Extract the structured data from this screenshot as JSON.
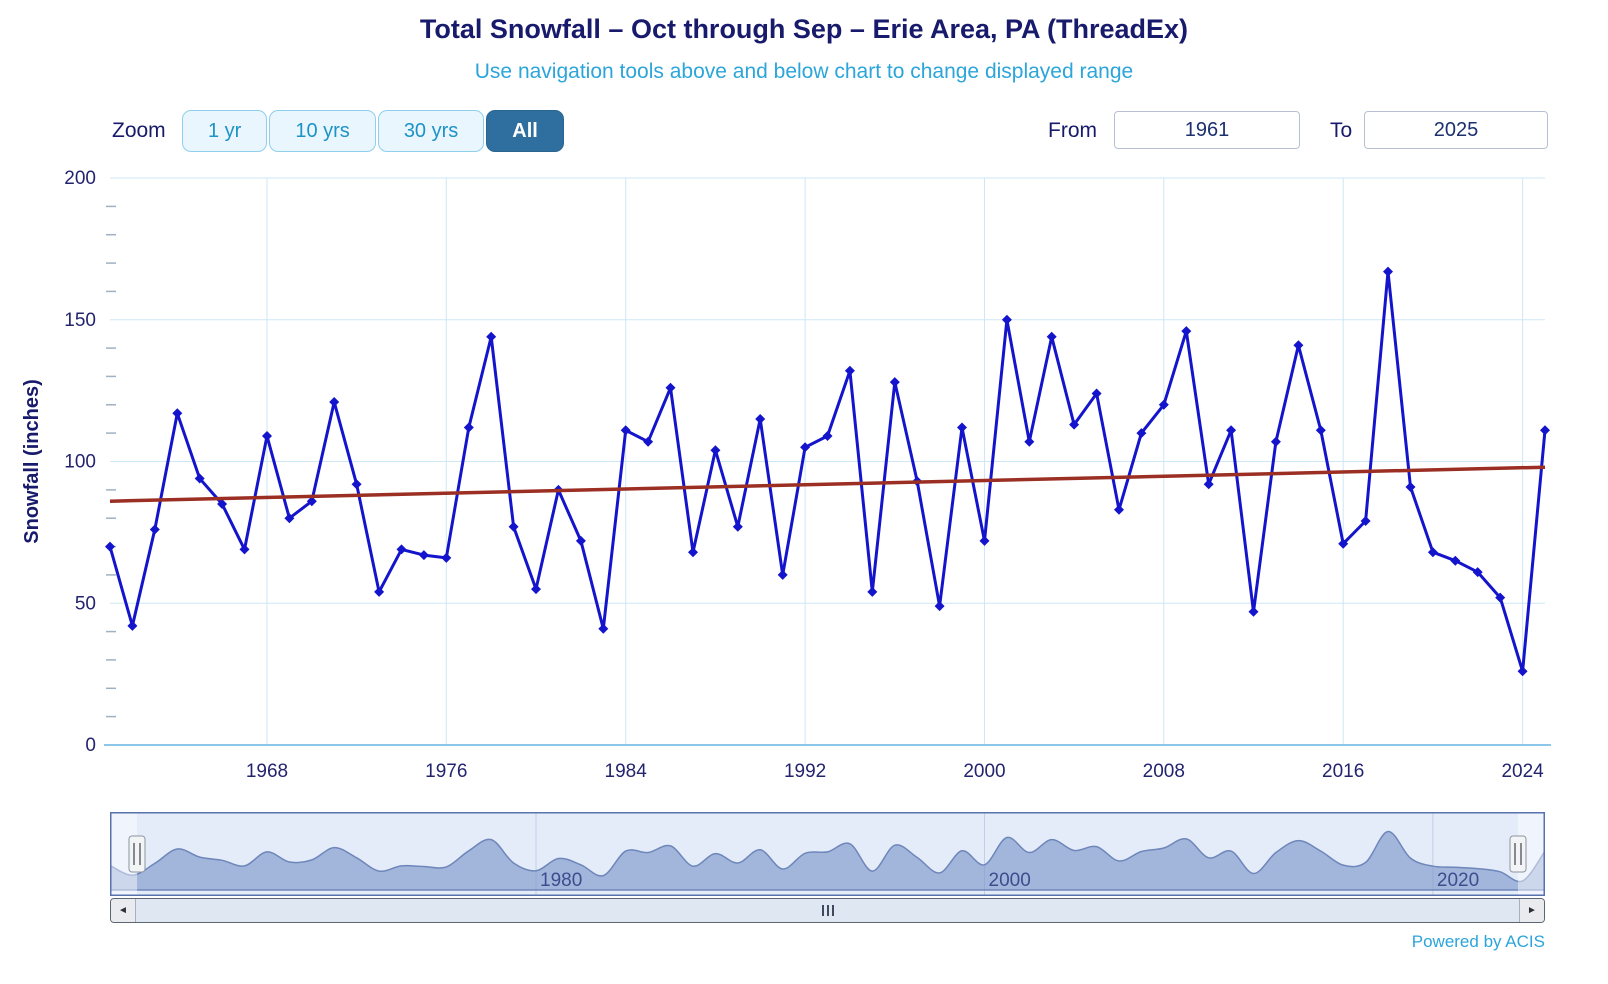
{
  "header": {
    "title": "Total Snowfall – Oct through Sep – Erie Area, PA (ThreadEx)",
    "subtitle": "Use navigation tools above and below chart to change displayed range"
  },
  "toolbar": {
    "zoom_label": "Zoom",
    "zoom_buttons": [
      {
        "label": "1 yr",
        "selected": false
      },
      {
        "label": "10 yrs",
        "selected": false
      },
      {
        "label": "30 yrs",
        "selected": false
      },
      {
        "label": "All",
        "selected": true
      }
    ],
    "from_label": "From",
    "from_value": "1961",
    "to_label": "To",
    "to_value": "2025"
  },
  "chart_data": {
    "type": "line",
    "title": "Total Snowfall – Oct through Sep – Erie Area, PA (ThreadEx)",
    "xlabel": "",
    "ylabel": "Snowfall (inches)",
    "ylim": [
      0,
      200
    ],
    "y_minor_step": 10,
    "yticks": [
      0,
      50,
      100,
      150,
      200
    ],
    "xticks": [
      1968,
      1976,
      1984,
      1992,
      2000,
      2008,
      2016,
      2024
    ],
    "grid": "on",
    "legend_position": "none",
    "x": [
      1961,
      1962,
      1963,
      1964,
      1965,
      1966,
      1967,
      1968,
      1969,
      1970,
      1971,
      1972,
      1973,
      1974,
      1975,
      1976,
      1977,
      1978,
      1979,
      1980,
      1981,
      1982,
      1983,
      1984,
      1985,
      1986,
      1987,
      1988,
      1989,
      1990,
      1991,
      1992,
      1993,
      1994,
      1995,
      1996,
      1997,
      1998,
      1999,
      2000,
      2001,
      2002,
      2003,
      2004,
      2005,
      2006,
      2007,
      2008,
      2009,
      2010,
      2011,
      2012,
      2013,
      2014,
      2015,
      2016,
      2017,
      2018,
      2019,
      2020,
      2021,
      2022,
      2023,
      2024,
      2025
    ],
    "series": [
      {
        "name": "Total Snowfall",
        "color": "#1414cc",
        "marker": "diamond",
        "values": [
          70,
          42,
          76,
          117,
          94,
          85,
          69,
          109,
          80,
          86,
          121,
          92,
          54,
          69,
          67,
          66,
          112,
          144,
          77,
          55,
          90,
          72,
          41,
          111,
          107,
          126,
          68,
          104,
          77,
          115,
          60,
          105,
          109,
          132,
          54,
          128,
          93,
          49,
          112,
          72,
          150,
          107,
          144,
          113,
          124,
          83,
          110,
          120,
          146,
          92,
          111,
          47,
          107,
          141,
          111,
          71,
          79,
          167,
          91,
          68,
          65,
          61,
          52,
          26,
          111
        ]
      }
    ],
    "trend": {
      "name": "Linear Trend",
      "color": "#9b2f23",
      "start_value": 86,
      "end_value": 98
    },
    "navigator": {
      "labels": [
        "1980",
        "2000",
        "2020"
      ]
    },
    "colors": {
      "grid": "#cde7f6",
      "axis_line": "#8cc6e8",
      "axis_text": "#23246e",
      "title_text": "#181a6b"
    }
  },
  "scrollbar": {
    "left_arrow": "◄",
    "right_arrow": "►"
  },
  "footer": {
    "credit": "Powered by ACIS"
  }
}
